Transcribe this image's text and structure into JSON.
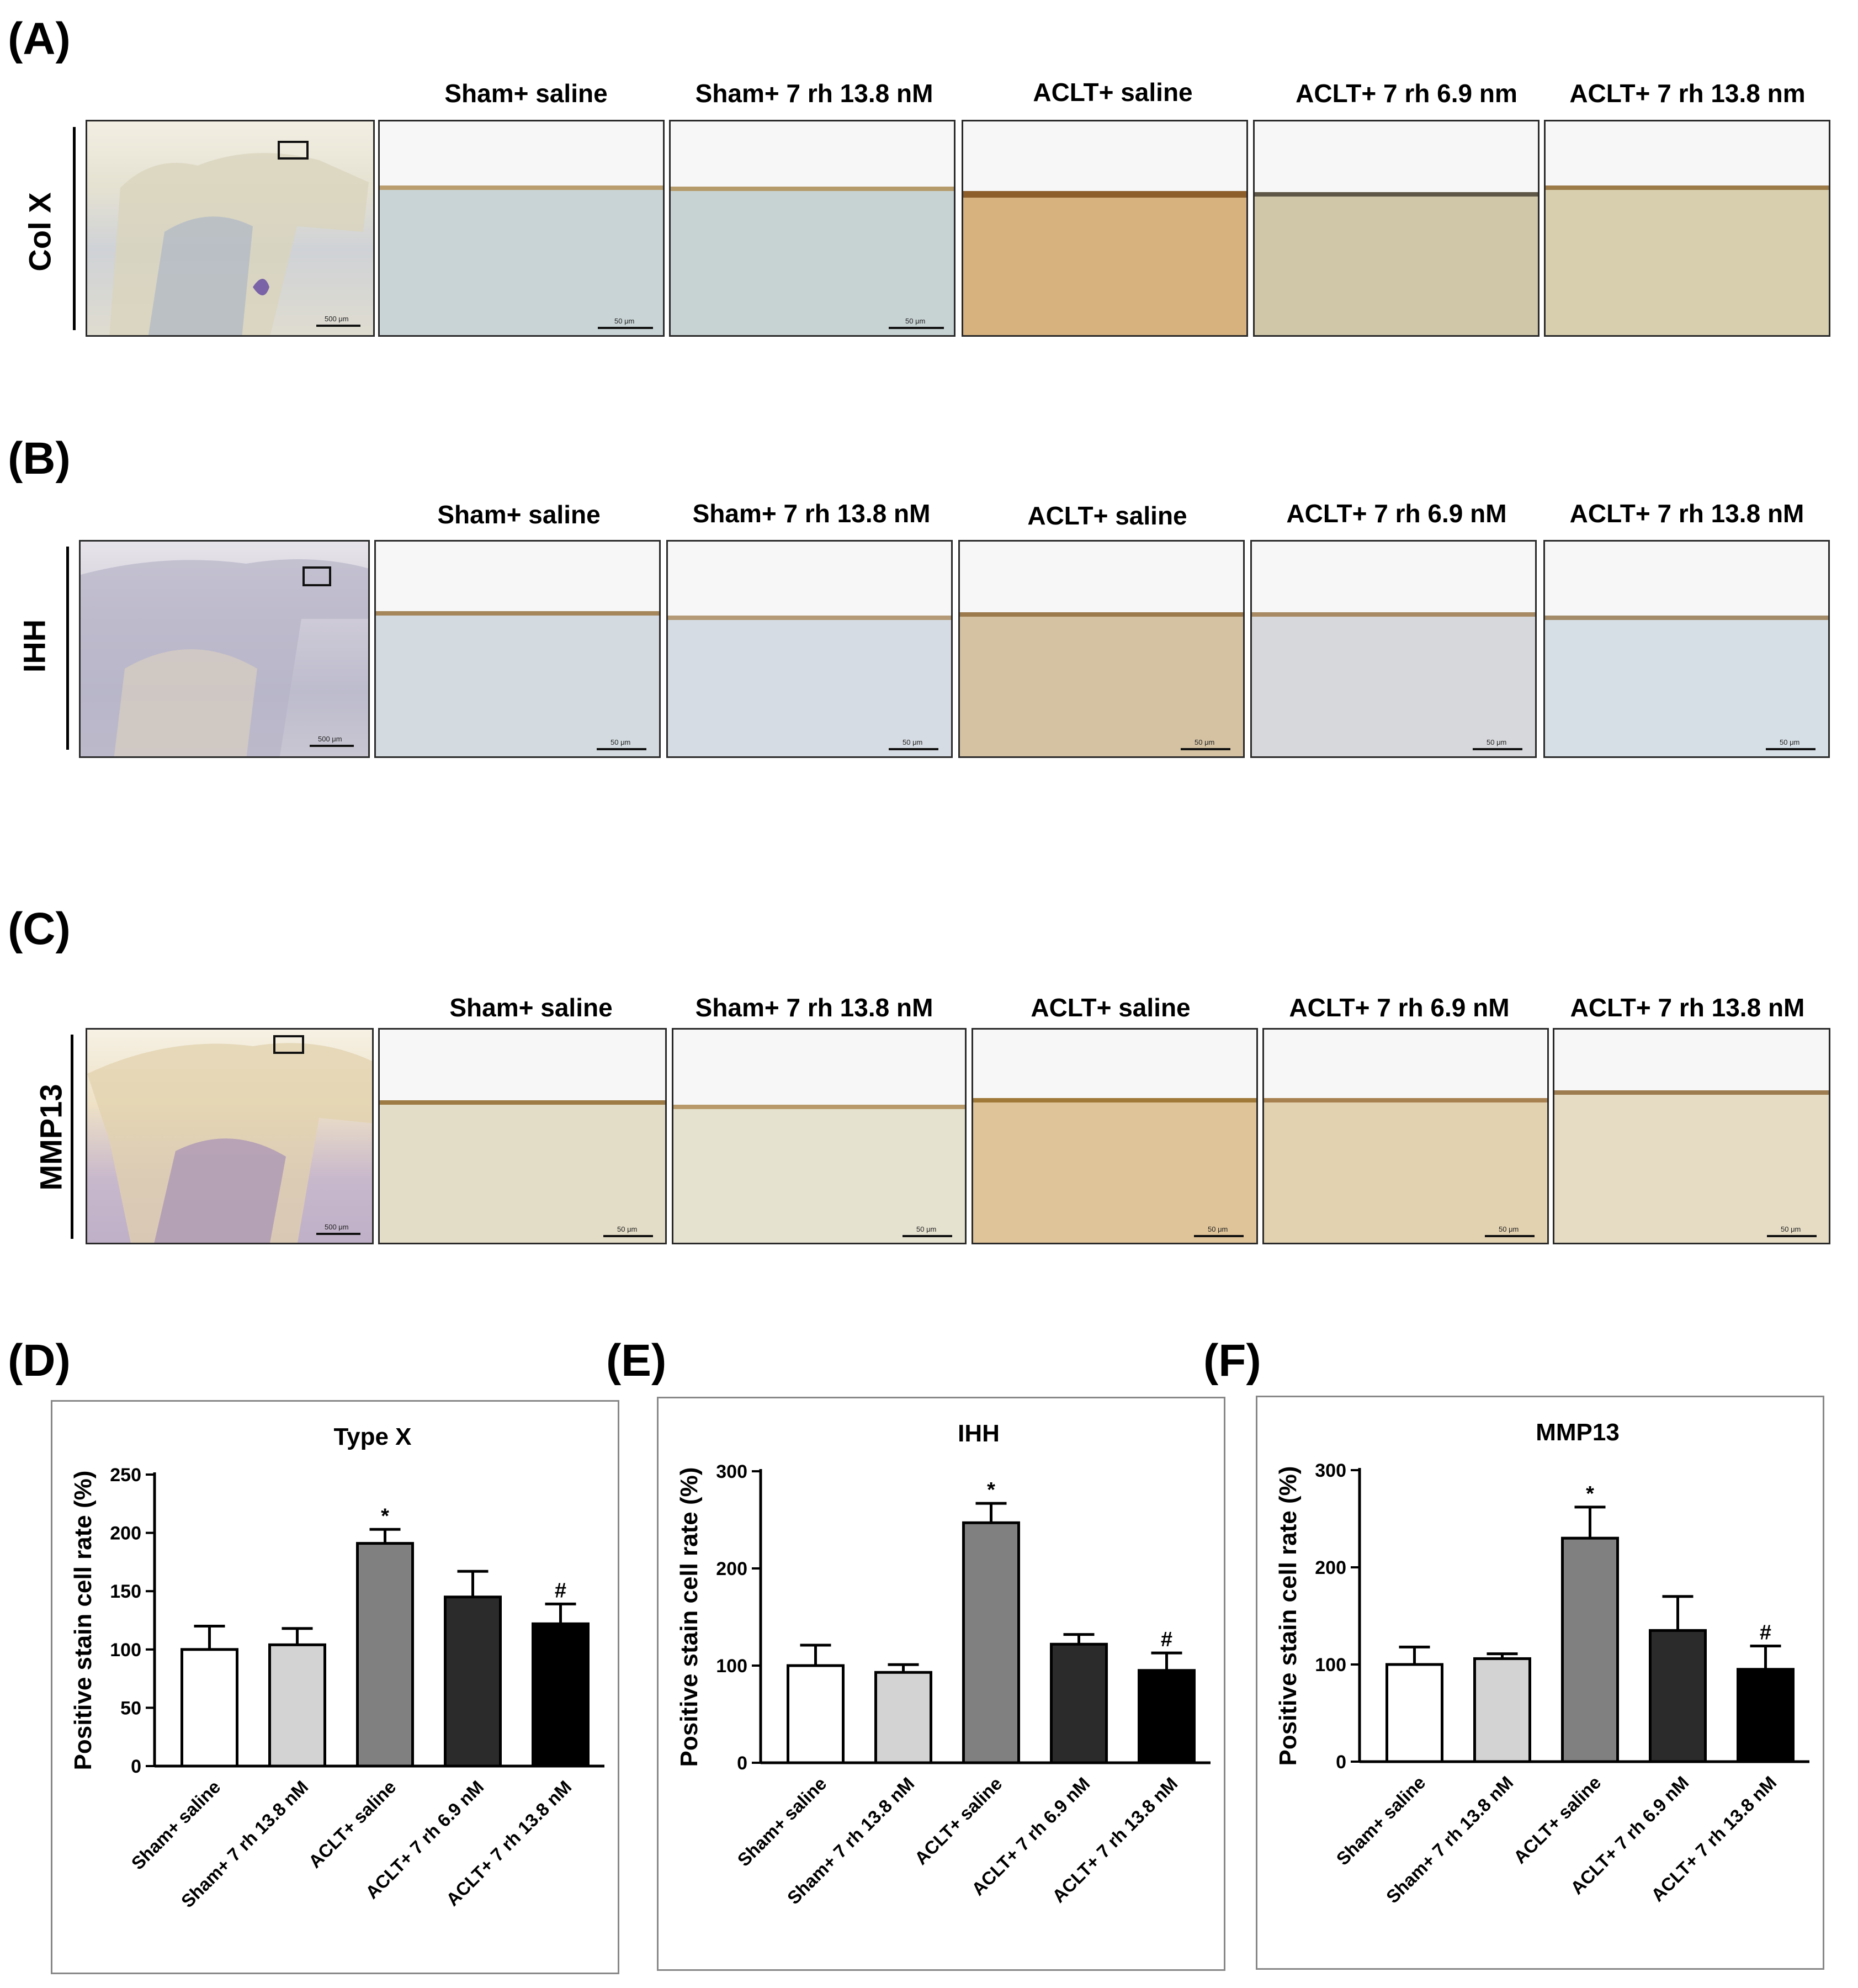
{
  "panels": {
    "A": {
      "letter": "(A)",
      "row_label": "Col X",
      "titles": [
        "Sham+ saline",
        "Sham+ 7 rh 13.8 nM",
        "ACLT+ saline",
        "ACLT+ 7 rh 6.9 nm",
        "ACLT+ 7 rh 13.8 nm"
      ],
      "overview_scale": "500 μm",
      "micro_scale": "50 μm"
    },
    "B": {
      "letter": "(B)",
      "row_label": "IHH",
      "titles": [
        "Sham+ saline",
        "Sham+ 7 rh 13.8 nM",
        "ACLT+ saline",
        "ACLT+ 7 rh 6.9 nM",
        "ACLT+ 7 rh 13.8 nM"
      ],
      "overview_scale": "500 μm",
      "micro_scale": "50 μm"
    },
    "C": {
      "letter": "(C)",
      "row_label": "MMP13",
      "titles": [
        "Sham+ saline",
        "Sham+ 7 rh 13.8 nM",
        "ACLT+ saline",
        "ACLT+ 7 rh 6.9 nM",
        "ACLT+ 7 rh 13.8 nM"
      ],
      "overview_scale": "500 μm",
      "micro_scale": "50 μm"
    },
    "D": {
      "letter": "(D)"
    },
    "E": {
      "letter": "(E)"
    },
    "F": {
      "letter": "(F)"
    }
  },
  "stain_colors": {
    "A": [
      "#c9d4d6",
      "#c7d2d3",
      "#d7b27f",
      "#cfc7a8",
      "#d7cfae"
    ],
    "B": [
      "#d3dbe0",
      "#d6dce3",
      "#d4c2a3",
      "#d7d8db",
      "#d6dfe6"
    ],
    "C": [
      "#e3dcc6",
      "#e6e2d0",
      "#e0c499",
      "#e3d2b0",
      "#e6dcc4"
    ]
  },
  "chart_data": [
    {
      "type": "bar",
      "title": "Type X",
      "ylabel": "Positive stain cell rate (%)",
      "xlabel": "",
      "categories": [
        "Sham+ saline",
        "Sham+ 7 rh 13.8 nM",
        "ACLT+ saline",
        "ACLT+ 7 rh 6.9 nM",
        "ACLT+ 7 rh 13.8 nM"
      ],
      "values": [
        100,
        104,
        191,
        145,
        122
      ],
      "errors": [
        20,
        14,
        12,
        22,
        17
      ],
      "annotations": [
        "",
        "",
        "*",
        "",
        "#"
      ],
      "bar_colors": [
        "#ffffff",
        "#d3d3d3",
        "#808080",
        "#2b2b2b",
        "#000000"
      ],
      "ylim": [
        0,
        250
      ],
      "yticks": [
        0,
        50,
        100,
        150,
        200,
        250
      ]
    },
    {
      "type": "bar",
      "title": "IHH",
      "ylabel": "Positive stain cell rate (%)",
      "xlabel": "",
      "categories": [
        "Sham+ saline",
        "Sham+ 7 rh 13.8 nM",
        "ACLT+ saline",
        "ACLT+ 7 rh 6.9 nM",
        "ACLT+ 7 rh 13.8 nM"
      ],
      "values": [
        100,
        93,
        247,
        122,
        95
      ],
      "errors": [
        21,
        8,
        20,
        10,
        18
      ],
      "annotations": [
        "",
        "",
        "*",
        "",
        "#"
      ],
      "bar_colors": [
        "#ffffff",
        "#d3d3d3",
        "#808080",
        "#2b2b2b",
        "#000000"
      ],
      "ylim": [
        0,
        300
      ],
      "yticks": [
        0,
        100,
        200,
        300
      ]
    },
    {
      "type": "bar",
      "title": "MMP13",
      "ylabel": "Positive stain cell rate (%)",
      "xlabel": "",
      "categories": [
        "Sham+ saline",
        "Sham+ 7 rh 13.8 nM",
        "ACLT+ saline",
        "ACLT+ 7 rh 6.9 nM",
        "ACLT+ 7 rh 13.8 nM"
      ],
      "values": [
        100,
        106,
        230,
        135,
        95
      ],
      "errors": [
        18,
        5,
        32,
        35,
        24
      ],
      "annotations": [
        "",
        "",
        "*",
        "",
        "#"
      ],
      "bar_colors": [
        "#ffffff",
        "#d3d3d3",
        "#808080",
        "#2b2b2b",
        "#000000"
      ],
      "ylim": [
        0,
        300
      ],
      "yticks": [
        0,
        100,
        200,
        300
      ]
    }
  ]
}
